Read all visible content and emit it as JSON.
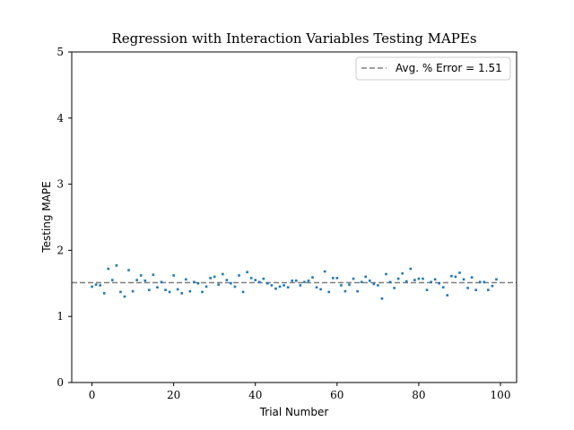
{
  "chart_data": {
    "type": "scatter",
    "title": "Regression with Interaction Variables Testing MAPEs",
    "xlabel": "Trial Number",
    "ylabel": "Testing MAPE",
    "xlim": [
      -4.95,
      103.95
    ],
    "ylim": [
      0,
      5
    ],
    "xticks": [
      0,
      20,
      40,
      60,
      80,
      100
    ],
    "yticks": [
      0,
      1,
      2,
      3,
      4,
      5
    ],
    "grid": false,
    "legend_position": "top-right",
    "marker_color": "#1f77b4",
    "line_color": "#7f7f7f",
    "average_line": {
      "label": "Avg. % Error = 1.51",
      "value": 1.51,
      "style": "dashed"
    },
    "series": [
      {
        "x": [
          0,
          1,
          2,
          3,
          4,
          5,
          6,
          7,
          8,
          9,
          10,
          11,
          12,
          13,
          14,
          15,
          16,
          17,
          18,
          19,
          20,
          21,
          22,
          23,
          24,
          25,
          26,
          27,
          28,
          29,
          30,
          31,
          32,
          33,
          34,
          35,
          36,
          37,
          38,
          39,
          40,
          41,
          42,
          43,
          44,
          45,
          46,
          47,
          48,
          49,
          50,
          51,
          52,
          53,
          54,
          55,
          56,
          57,
          58,
          59,
          60,
          61,
          62,
          63,
          64,
          65,
          66,
          67,
          68,
          69,
          70,
          71,
          72,
          73,
          74,
          75,
          76,
          77,
          78,
          79,
          80,
          81,
          82,
          83,
          84,
          85,
          86,
          87,
          88,
          89,
          90,
          91,
          92,
          93,
          94,
          95,
          96,
          97,
          98,
          99
        ],
        "y": [
          1.45,
          1.48,
          1.47,
          1.35,
          1.72,
          1.55,
          1.77,
          1.37,
          1.3,
          1.7,
          1.38,
          1.55,
          1.62,
          1.54,
          1.4,
          1.63,
          1.44,
          1.52,
          1.4,
          1.37,
          1.62,
          1.41,
          1.35,
          1.56,
          1.38,
          1.52,
          1.5,
          1.37,
          1.45,
          1.58,
          1.6,
          1.48,
          1.64,
          1.55,
          1.5,
          1.45,
          1.62,
          1.37,
          1.67,
          1.58,
          1.55,
          1.52,
          1.57,
          1.5,
          1.47,
          1.42,
          1.45,
          1.47,
          1.44,
          1.54,
          1.54,
          1.47,
          1.52,
          1.54,
          1.59,
          1.44,
          1.41,
          1.68,
          1.37,
          1.58,
          1.58,
          1.47,
          1.38,
          1.48,
          1.57,
          1.38,
          1.52,
          1.6,
          1.54,
          1.49,
          1.47,
          1.27,
          1.64,
          1.52,
          1.43,
          1.57,
          1.65,
          1.53,
          1.72,
          1.55,
          1.57,
          1.57,
          1.4,
          1.52,
          1.56,
          1.5,
          1.44,
          1.32,
          1.61,
          1.6,
          1.66,
          1.56,
          1.43,
          1.59,
          1.4,
          1.52,
          1.52,
          1.4,
          1.46,
          1.56
        ]
      }
    ]
  }
}
